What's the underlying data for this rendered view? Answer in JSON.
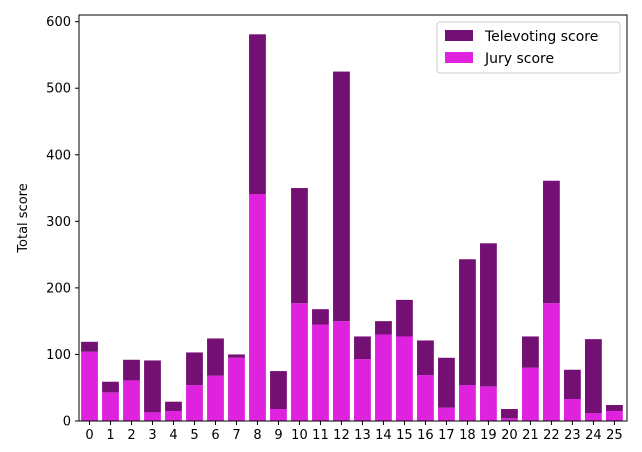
{
  "chart_data": {
    "type": "bar",
    "stacked": true,
    "title": "",
    "xlabel": "",
    "ylabel": "Total score",
    "ylim": [
      0,
      610
    ],
    "yticks": [
      0,
      100,
      200,
      300,
      400,
      500,
      600
    ],
    "categories": [
      "0",
      "1",
      "2",
      "3",
      "4",
      "5",
      "6",
      "7",
      "8",
      "9",
      "10",
      "11",
      "12",
      "13",
      "14",
      "15",
      "16",
      "17",
      "18",
      "19",
      "20",
      "21",
      "22",
      "23",
      "24",
      "25"
    ],
    "series": [
      {
        "name": "Jury score",
        "color": "#de22de",
        "values": [
          104,
          43,
          61,
          13,
          15,
          54,
          68,
          95,
          341,
          18,
          177,
          145,
          150,
          93,
          130,
          127,
          69,
          20,
          54,
          52,
          4,
          80,
          177,
          33,
          12,
          15
        ]
      },
      {
        "name": "Televoting score",
        "color": "#741074",
        "values": [
          15,
          16,
          31,
          78,
          14,
          49,
          56,
          5,
          240,
          57,
          173,
          23,
          375,
          34,
          20,
          55,
          52,
          75,
          189,
          215,
          14,
          47,
          184,
          44,
          111,
          9
        ]
      }
    ],
    "legend": {
      "placement": "top-right",
      "entries": [
        "Televoting score",
        "Jury score"
      ]
    },
    "grid": false
  }
}
